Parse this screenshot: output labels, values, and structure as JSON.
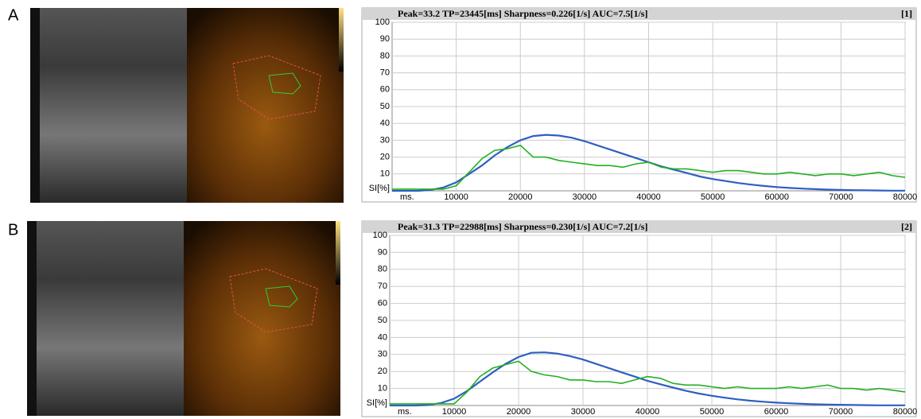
{
  "chart_data": [
    {
      "type": "line",
      "panel": "A",
      "title": "Peak=33.2  TP=23445[ms]  Sharpness=0.226[1/s]  AUC=7.5[1/s]",
      "index_label": "[1]",
      "xlabel": "ms.",
      "ylabel": "SI[%]",
      "xlim": [
        0,
        80000
      ],
      "ylim": [
        0,
        100
      ],
      "xticks": [
        10000,
        20000,
        30000,
        40000,
        50000,
        60000,
        70000,
        80000
      ],
      "yticks": [
        10,
        20,
        30,
        40,
        50,
        60,
        70,
        80,
        90,
        100
      ],
      "grid": true,
      "x": [
        0,
        2000,
        4000,
        6000,
        8000,
        10000,
        12000,
        14000,
        16000,
        18000,
        20000,
        22000,
        24000,
        26000,
        28000,
        30000,
        32000,
        34000,
        36000,
        38000,
        40000,
        42000,
        44000,
        46000,
        48000,
        50000,
        52000,
        54000,
        56000,
        58000,
        60000,
        62000,
        64000,
        66000,
        68000,
        70000,
        72000,
        74000,
        76000,
        78000,
        80000
      ],
      "series": [
        {
          "color": "#2f5fc0",
          "values": [
            0,
            0,
            0,
            0.5,
            2,
            5,
            10,
            15,
            21,
            26,
            30,
            32.5,
            33.2,
            32.8,
            31.5,
            29.5,
            27,
            24.5,
            22,
            19.5,
            17,
            14.5,
            12.5,
            10.5,
            8.5,
            7,
            5.8,
            4.6,
            3.7,
            2.9,
            2.2,
            1.7,
            1.3,
            1,
            0.7,
            0.5,
            0.4,
            0.3,
            0.2,
            0.1,
            0.1
          ]
        },
        {
          "color": "#22b022",
          "values": [
            1,
            1,
            1,
            1,
            1,
            3,
            11,
            19,
            24,
            25,
            27,
            20,
            20,
            18,
            17,
            16,
            15,
            15,
            14,
            16,
            17,
            14,
            13,
            13,
            12,
            11,
            12,
            12,
            11,
            10,
            10,
            11,
            10,
            9,
            10,
            10,
            9,
            10,
            11,
            9,
            8
          ]
        }
      ]
    },
    {
      "type": "line",
      "panel": "B",
      "title": "Peak=31.3  TP=22988[ms]  Sharpness=0.230[1/s]  AUC=7.2[1/s]",
      "index_label": "[2]",
      "xlabel": "ms.",
      "ylabel": "SI[%]",
      "xlim": [
        0,
        80000
      ],
      "ylim": [
        0,
        100
      ],
      "xticks": [
        10000,
        20000,
        30000,
        40000,
        50000,
        60000,
        70000,
        80000
      ],
      "yticks": [
        10,
        20,
        30,
        40,
        50,
        60,
        70,
        80,
        90,
        100
      ],
      "grid": true,
      "x": [
        0,
        2000,
        4000,
        6000,
        8000,
        10000,
        12000,
        14000,
        16000,
        18000,
        20000,
        22000,
        24000,
        26000,
        28000,
        30000,
        32000,
        34000,
        36000,
        38000,
        40000,
        42000,
        44000,
        46000,
        48000,
        50000,
        52000,
        54000,
        56000,
        58000,
        60000,
        62000,
        64000,
        66000,
        68000,
        70000,
        72000,
        74000,
        76000,
        78000,
        80000
      ],
      "series": [
        {
          "color": "#2f5fc0",
          "values": [
            0,
            0,
            0,
            0.3,
            1.5,
            4,
            8.5,
            14,
            19.5,
            24.5,
            28.5,
            31,
            31.2,
            30.5,
            29,
            27,
            24.5,
            22,
            19.5,
            17,
            14.5,
            12.5,
            10.5,
            8.6,
            7,
            5.7,
            4.6,
            3.6,
            2.8,
            2.2,
            1.7,
            1.3,
            1,
            0.7,
            0.5,
            0.4,
            0.3,
            0.2,
            0.1,
            0.1,
            0.1
          ]
        },
        {
          "color": "#22b022",
          "values": [
            1,
            1,
            1,
            1,
            1,
            1,
            8,
            17,
            22,
            24,
            26,
            20,
            18,
            17,
            15,
            15,
            14,
            14,
            13,
            15,
            17,
            16,
            13,
            12,
            12,
            11,
            10,
            11,
            10,
            10,
            10,
            11,
            10,
            11,
            12,
            10,
            10,
            9,
            10,
            9,
            8
          ]
        }
      ]
    }
  ]
}
